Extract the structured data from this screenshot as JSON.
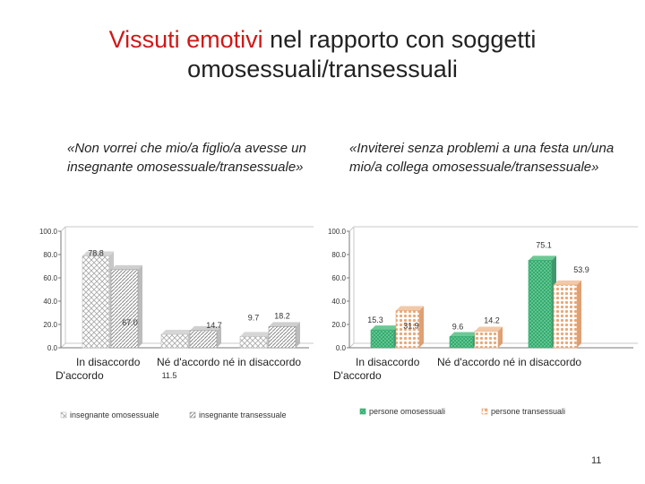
{
  "title": {
    "accent_part": "Vissuti emotivi",
    "rest_part": " nel rapporto con soggetti",
    "line2": "omosessuali/transessuali"
  },
  "page_number": "11",
  "colors": {
    "accent": "#d01818",
    "green": "#2ea86a",
    "orange": "#e8a878",
    "gray": "#9a9a9a"
  },
  "chart_data": [
    {
      "type": "bar",
      "title": "«Non vorrei che mio/a figlio/a avesse un insegnante omosessuale/transessuale»",
      "categories": [
        "In disaccordo",
        "Né d'accordo né in disaccordo",
        "D'accordo"
      ],
      "category_labels_display": {
        "line1_left": "In disaccordo",
        "line1_right": "Né d'accordo né in disaccordo",
        "line2_left": "D'accordo"
      },
      "series": [
        {
          "name": "insegnante omosessuale",
          "values": [
            78.8,
            11.5,
            9.7
          ]
        },
        {
          "name": "insegnante transessuale",
          "values": [
            67.0,
            14.7,
            18.2
          ]
        }
      ],
      "yticks": [
        "0.0",
        "20.0",
        "40.0",
        "60.0",
        "80.0",
        "100.0"
      ],
      "ylim": [
        0,
        100
      ],
      "legend": "bottom"
    },
    {
      "type": "bar",
      "title": "«Inviterei senza problemi a una festa un/una mio/a collega omosessuale/transessuale»",
      "categories": [
        "In disaccordo",
        "Né d'accordo né in disaccordo",
        "D'accordo"
      ],
      "category_labels_display": {
        "line1_left": "In disaccordo",
        "line1_right": "Né d'accordo né in disaccordo",
        "line2_left": "D'accordo"
      },
      "series": [
        {
          "name": "persone omosessuali",
          "values": [
            15.3,
            9.6,
            75.1
          ]
        },
        {
          "name": "persone transessuali",
          "values": [
            31.9,
            14.2,
            53.9
          ]
        }
      ],
      "yticks": [
        "0.0",
        "20.0",
        "40.0",
        "60.0",
        "80.0",
        "100.0"
      ],
      "ylim": [
        0,
        100
      ],
      "legend": "bottom"
    }
  ]
}
